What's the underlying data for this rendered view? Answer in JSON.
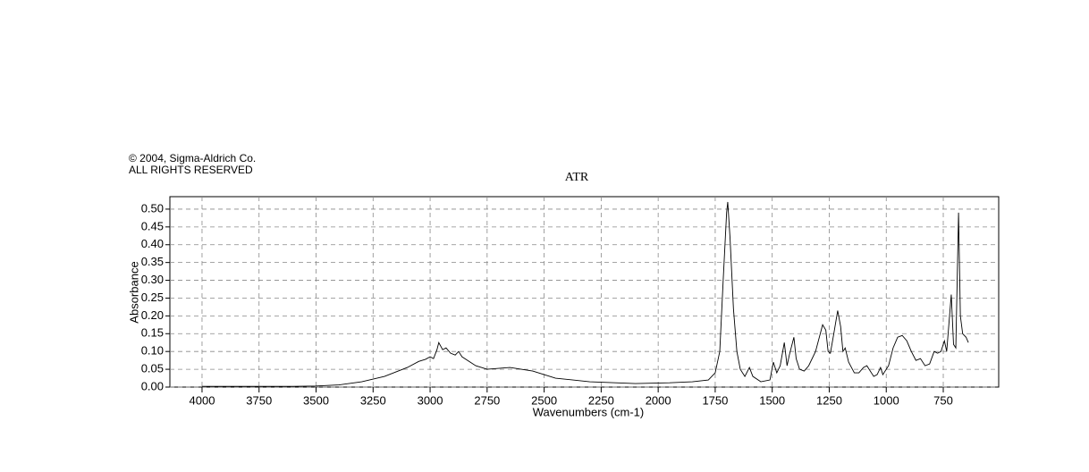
{
  "chart_data": {
    "type": "line",
    "copyright": "© 2004, Sigma-Aldrich Co.",
    "rights": "ALL RIGHTS RESERVED",
    "title": "ATR",
    "x_label": "Wavenumbers (cm-1)",
    "y_label": "Absorbance",
    "xlim": [
      4141,
      507
    ],
    "ylim": [
      0,
      0.535
    ],
    "xticks": [
      4000,
      3750,
      3500,
      3250,
      3000,
      2750,
      2500,
      2250,
      2000,
      1750,
      1500,
      1250,
      1000,
      750
    ],
    "yticks": [
      {
        "value": 0,
        "label": "0.00"
      },
      {
        "value": 0.05,
        "label": "0.05"
      },
      {
        "value": 0.1,
        "label": "0.10"
      },
      {
        "value": 0.15,
        "label": "0.15"
      },
      {
        "value": 0.2,
        "label": "0.20"
      },
      {
        "value": 0.25,
        "label": "0.25"
      },
      {
        "value": 0.3,
        "label": "0.30"
      },
      {
        "value": 0.35,
        "label": "0.35"
      },
      {
        "value": 0.4,
        "label": "0.40"
      },
      {
        "value": 0.45,
        "label": "0.45"
      },
      {
        "value": 0.5,
        "label": "0.50"
      }
    ],
    "grid": true,
    "color": "#000000",
    "x": [
      4000,
      3800,
      3600,
      3500,
      3400,
      3300,
      3200,
      3100,
      3050,
      3020,
      3000,
      2985,
      2970,
      2962,
      2945,
      2930,
      2910,
      2890,
      2875,
      2860,
      2800,
      2750,
      2650,
      2550,
      2450,
      2300,
      2100,
      1950,
      1850,
      1780,
      1750,
      1730,
      1715,
      1700,
      1695,
      1685,
      1670,
      1655,
      1640,
      1620,
      1600,
      1585,
      1550,
      1510,
      1495,
      1480,
      1465,
      1447,
      1435,
      1425,
      1405,
      1395,
      1380,
      1360,
      1340,
      1310,
      1279,
      1265,
      1255,
      1245,
      1230,
      1213,
      1200,
      1190,
      1180,
      1165,
      1140,
      1120,
      1100,
      1085,
      1070,
      1055,
      1040,
      1025,
      1015,
      990,
      970,
      950,
      930,
      910,
      890,
      870,
      850,
      830,
      810,
      790,
      775,
      760,
      745,
      735,
      715,
      705,
      695,
      683,
      675,
      665,
      650,
      640
    ],
    "values": [
      0.002,
      0.002,
      0.002,
      0.003,
      0.006,
      0.015,
      0.03,
      0.055,
      0.072,
      0.078,
      0.085,
      0.08,
      0.105,
      0.125,
      0.105,
      0.11,
      0.095,
      0.09,
      0.1,
      0.085,
      0.06,
      0.05,
      0.055,
      0.045,
      0.025,
      0.015,
      0.01,
      0.012,
      0.015,
      0.02,
      0.04,
      0.1,
      0.3,
      0.49,
      0.52,
      0.42,
      0.22,
      0.1,
      0.05,
      0.03,
      0.055,
      0.03,
      0.015,
      0.02,
      0.07,
      0.04,
      0.06,
      0.125,
      0.06,
      0.09,
      0.14,
      0.08,
      0.05,
      0.045,
      0.06,
      0.1,
      0.175,
      0.16,
      0.1,
      0.095,
      0.15,
      0.215,
      0.17,
      0.1,
      0.11,
      0.07,
      0.04,
      0.04,
      0.055,
      0.06,
      0.045,
      0.03,
      0.035,
      0.055,
      0.035,
      0.06,
      0.11,
      0.14,
      0.145,
      0.13,
      0.1,
      0.075,
      0.08,
      0.06,
      0.065,
      0.1,
      0.095,
      0.1,
      0.13,
      0.1,
      0.26,
      0.12,
      0.11,
      0.49,
      0.2,
      0.15,
      0.14,
      0.125
    ]
  }
}
